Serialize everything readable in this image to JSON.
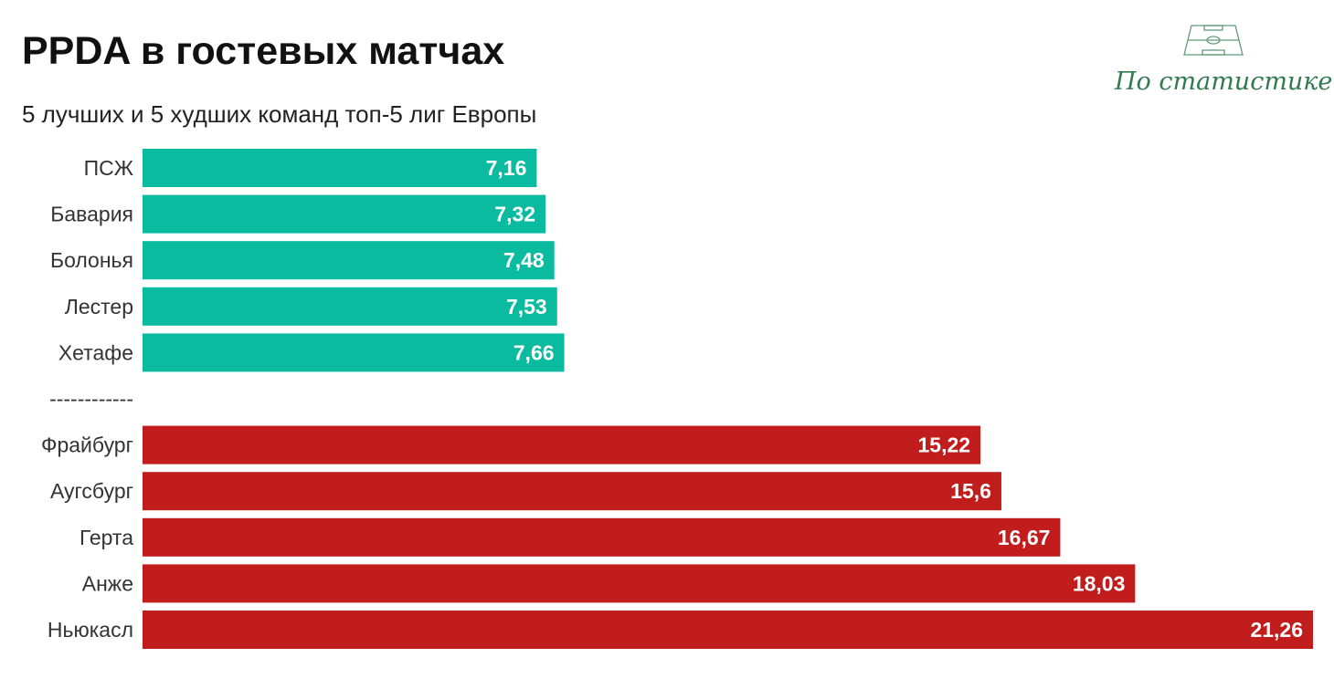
{
  "title": "PPDA в гостевых матчах",
  "subtitle": "5 лучших и 5 худших команд топ-5 лиг Европы",
  "logo": {
    "text": "По статистике",
    "icon": "football-pitch-icon",
    "color": "#2f7a4e"
  },
  "colors": {
    "best": "#0bbb9f",
    "worst": "#c21d1d"
  },
  "separator": "------------",
  "chart_data": {
    "type": "bar",
    "orientation": "horizontal",
    "title": "PPDA в гостевых матчах",
    "subtitle": "5 лучших и 5 худших команд топ-5 лиг Европы",
    "xlim": [
      0,
      21.26
    ],
    "grid": false,
    "data_labels": true,
    "categories": [
      "ПСЖ",
      "Бавария",
      "Болонья",
      "Лестер",
      "Хетафе",
      "Фрайбург",
      "Аугсбург",
      "Герта",
      "Анже",
      "Ньюкасл"
    ],
    "groups": [
      {
        "color": "#0bbb9f",
        "bars": [
          {
            "label": "ПСЖ",
            "value": 7.16,
            "value_text": "7,16"
          },
          {
            "label": "Бавария",
            "value": 7.32,
            "value_text": "7,32"
          },
          {
            "label": "Болонья",
            "value": 7.48,
            "value_text": "7,48"
          },
          {
            "label": "Лестер",
            "value": 7.53,
            "value_text": "7,53"
          },
          {
            "label": "Хетафе",
            "value": 7.66,
            "value_text": "7,66"
          }
        ]
      },
      {
        "color": "#c21d1d",
        "bars": [
          {
            "label": "Фрайбург",
            "value": 15.22,
            "value_text": "15,22"
          },
          {
            "label": "Аугсбург",
            "value": 15.6,
            "value_text": "15,6"
          },
          {
            "label": "Герта",
            "value": 16.67,
            "value_text": "16,67"
          },
          {
            "label": "Анже",
            "value": 18.03,
            "value_text": "18,03"
          },
          {
            "label": "Ньюкасл",
            "value": 21.26,
            "value_text": "21,26"
          }
        ]
      }
    ]
  }
}
